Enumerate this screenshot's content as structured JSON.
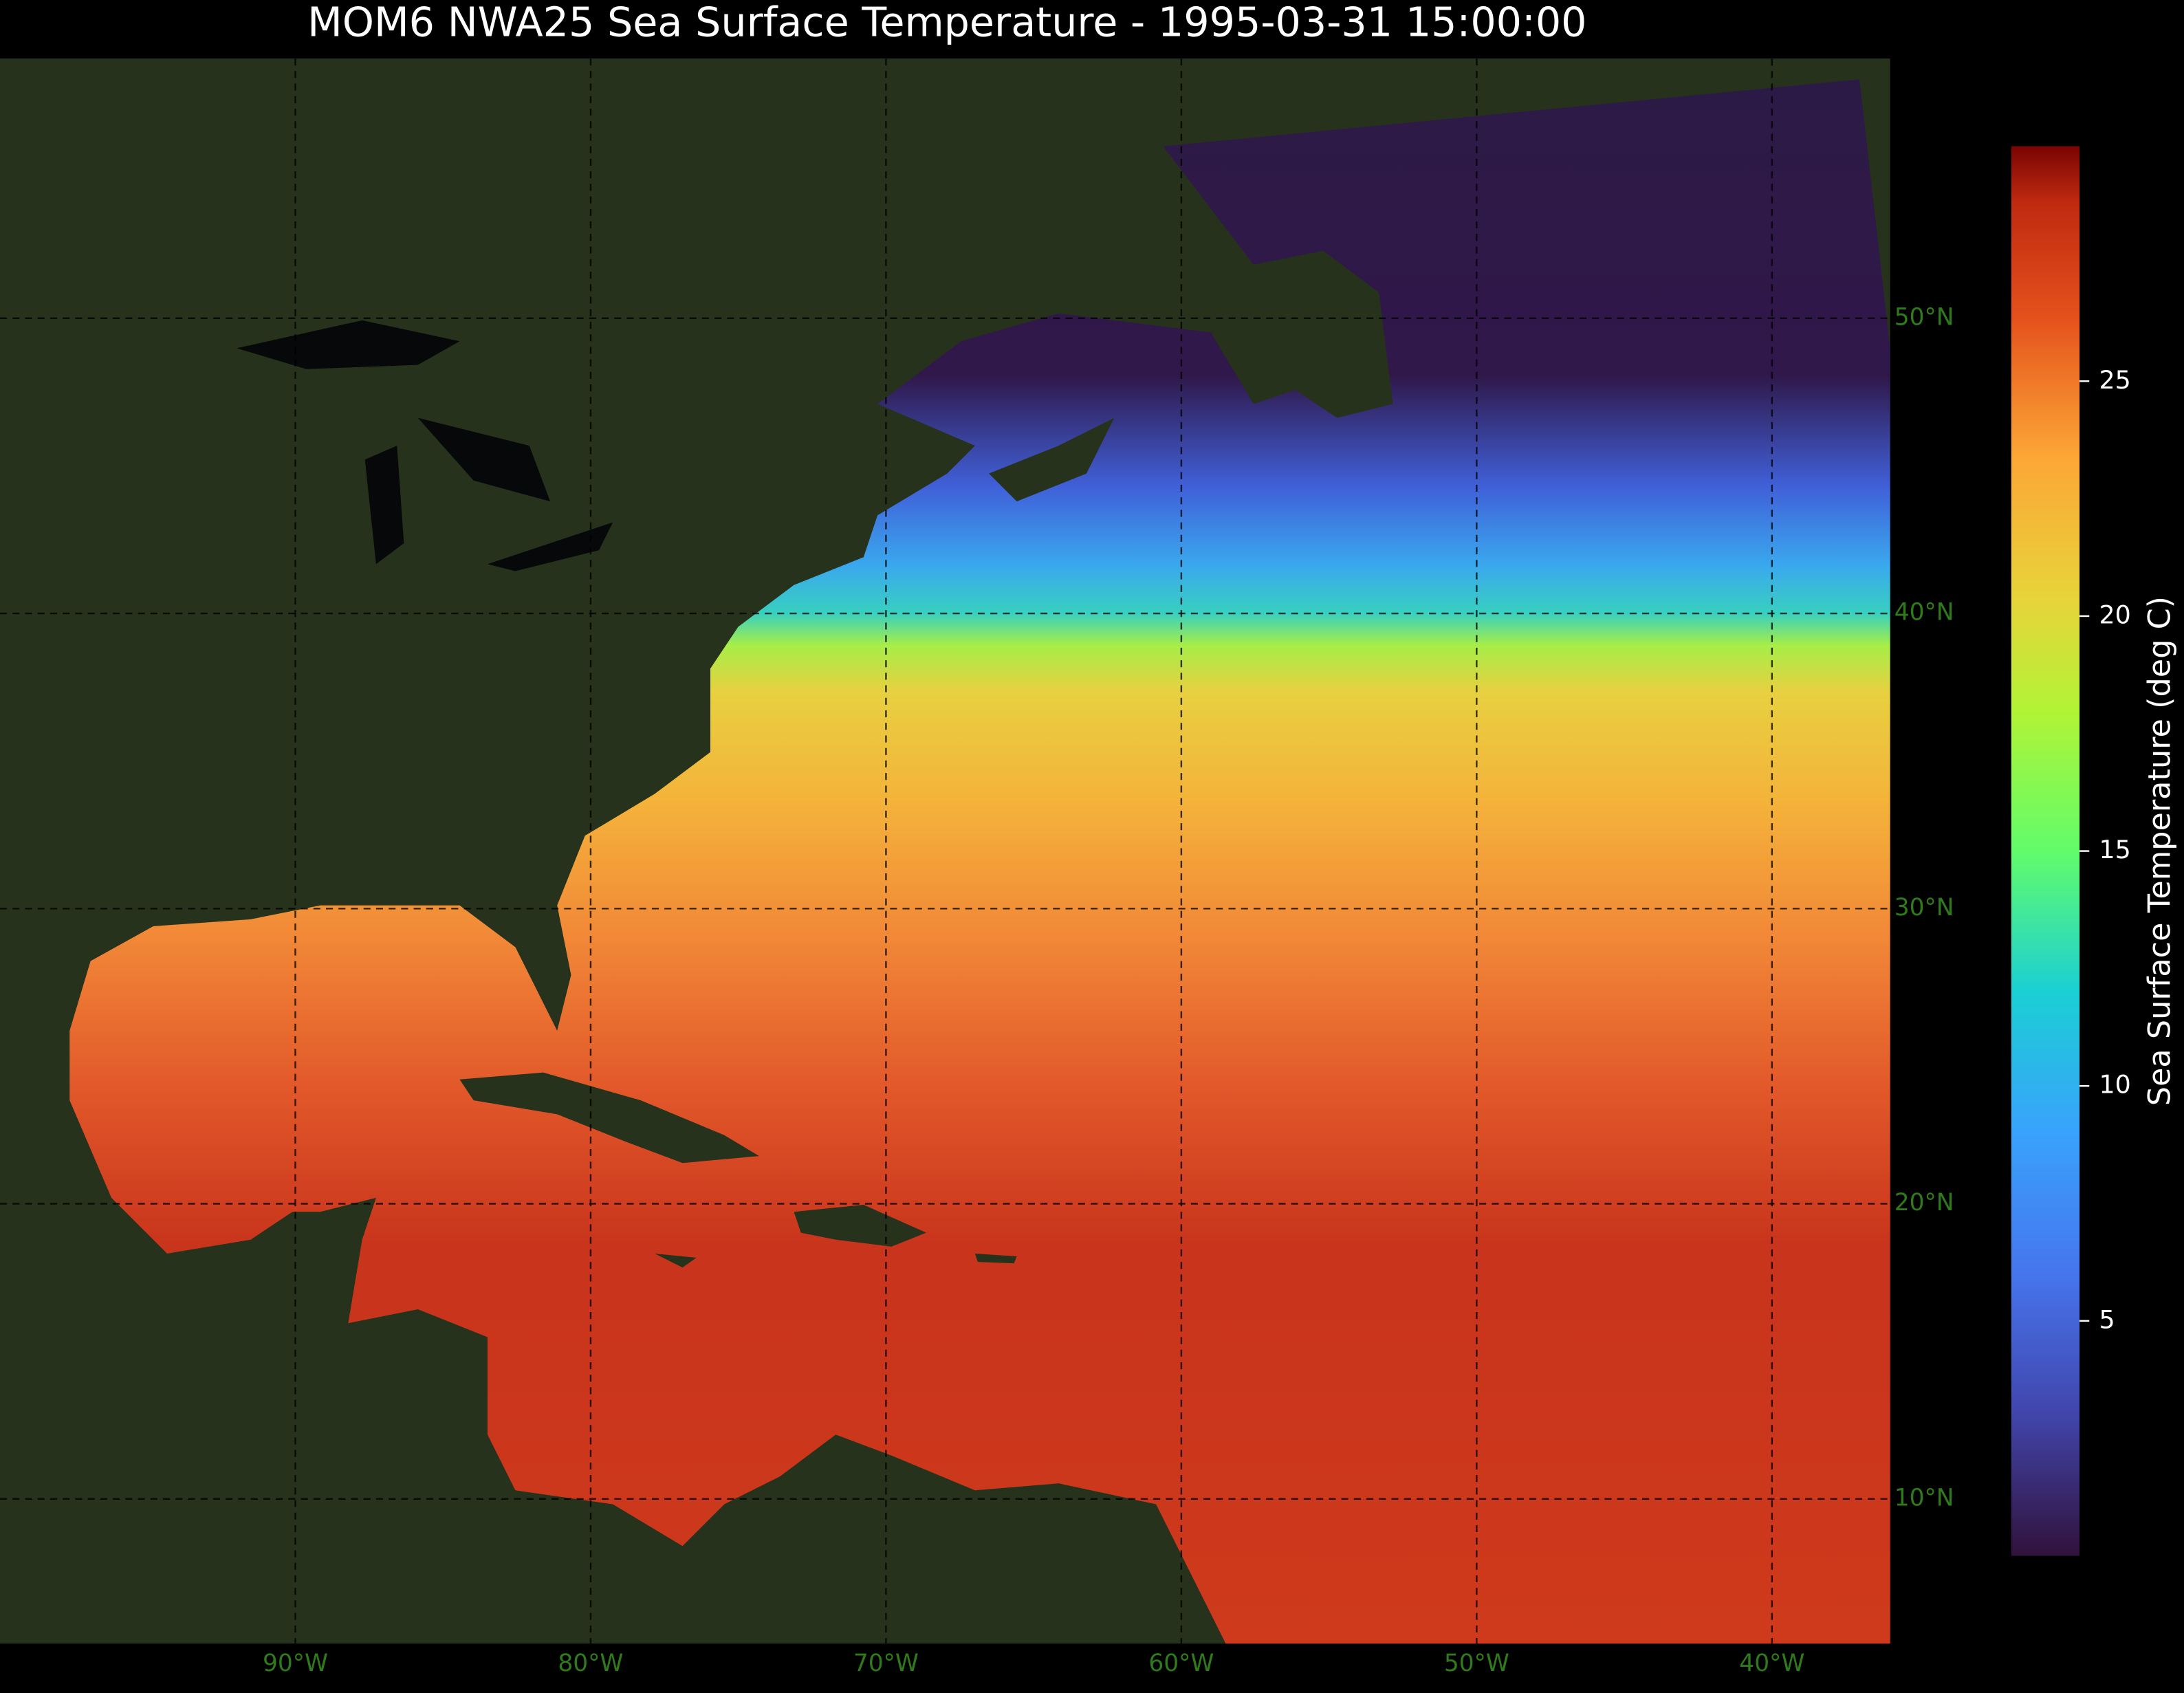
{
  "title": "MOM6 NWA25 Sea Surface Temperature - 1995-03-31 15:00:00",
  "map": {
    "xlim": [
      -100,
      -36
    ],
    "ylim": [
      5.1,
      58.8
    ],
    "xticks": [
      {
        "value": -90,
        "label": "90°W"
      },
      {
        "value": -80,
        "label": "80°W"
      },
      {
        "value": -70,
        "label": "70°W"
      },
      {
        "value": -60,
        "label": "60°W"
      },
      {
        "value": -50,
        "label": "50°W"
      },
      {
        "value": -40,
        "label": "40°W"
      }
    ],
    "yticks": [
      {
        "value": 10,
        "label": "10°N"
      },
      {
        "value": 20,
        "label": "20°N"
      },
      {
        "value": 30,
        "label": "30°N"
      },
      {
        "value": 40,
        "label": "40°N"
      },
      {
        "value": 50,
        "label": "50°N"
      }
    ],
    "grid": true
  },
  "colorbar": {
    "label": "Sea Surface Temperature (deg C)",
    "lim": [
      0,
      30
    ],
    "ticks": [
      5,
      10,
      15,
      20,
      25
    ]
  }
}
